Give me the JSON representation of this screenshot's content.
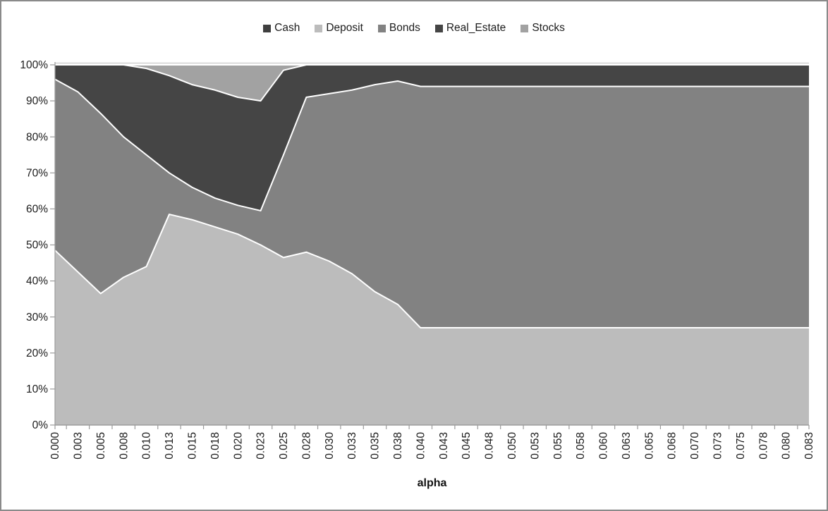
{
  "window": {
    "background": "#FFFFFF",
    "border_color": "#8A8A8A"
  },
  "chart_data": {
    "type": "area",
    "stacking": "percent",
    "title": "",
    "xlabel": "alpha",
    "ylabel": "",
    "ylim": [
      0,
      100
    ],
    "grid": "top-line-only",
    "legend_position": "top",
    "axis_color": "#9B9B9B",
    "gridline_color": "#C9C9C9",
    "boundary_stroke": "#FFFFFF",
    "text_color": "#1C1C1C",
    "y_tick_labels": [
      "0%",
      "10%",
      "20%",
      "30%",
      "40%",
      "50%",
      "60%",
      "70%",
      "80%",
      "90%",
      "100%"
    ],
    "categories": [
      "0.000",
      "0.003",
      "0.005",
      "0.008",
      "0.010",
      "0.013",
      "0.015",
      "0.018",
      "0.020",
      "0.023",
      "0.025",
      "0.028",
      "0.030",
      "0.033",
      "0.035",
      "0.038",
      "0.040",
      "0.043",
      "0.045",
      "0.048",
      "0.050",
      "0.053",
      "0.055",
      "0.058",
      "0.060",
      "0.063",
      "0.065",
      "0.068",
      "0.070",
      "0.073",
      "0.075",
      "0.078",
      "0.080",
      "0.083"
    ],
    "series": [
      {
        "name": "Cash",
        "color": "#3F3F3F",
        "values": [
          0,
          0,
          0,
          0,
          0,
          0,
          0,
          0,
          0,
          0,
          0,
          0,
          0,
          0,
          0,
          0,
          0,
          0,
          0,
          0,
          0,
          0,
          0,
          0,
          0,
          0,
          0,
          0,
          0,
          0,
          0,
          0,
          0,
          0
        ]
      },
      {
        "name": "Deposit",
        "color": "#BCBCBC",
        "values": [
          48.5,
          42.5,
          36.5,
          41,
          44,
          58.5,
          57,
          55,
          53,
          50,
          46.5,
          48,
          45.5,
          42,
          37,
          33.5,
          27,
          27,
          27,
          27,
          27,
          27,
          27,
          27,
          27,
          27,
          27,
          27,
          27,
          27,
          27,
          27,
          27,
          27
        ]
      },
      {
        "name": "Bonds",
        "color": "#828282",
        "values": [
          47.5,
          50,
          50,
          39,
          31,
          11.5,
          9,
          8,
          8,
          9.5,
          28.5,
          43,
          46.5,
          51,
          57.5,
          62,
          67,
          67,
          67,
          67,
          67,
          67,
          67,
          67,
          67,
          67,
          67,
          67,
          67,
          67,
          67,
          67,
          67,
          67
        ]
      },
      {
        "name": "Real_Estate",
        "color": "#454545",
        "values": [
          4,
          7.5,
          13.5,
          20,
          24,
          27,
          28.5,
          30,
          30,
          30.5,
          23.5,
          9,
          8,
          7,
          5.5,
          4.5,
          6,
          6,
          6,
          6,
          6,
          6,
          6,
          6,
          6,
          6,
          6,
          6,
          6,
          6,
          6,
          6,
          6,
          6
        ]
      },
      {
        "name": "Stocks",
        "color": "#A2A2A2",
        "values": [
          0,
          0,
          0,
          0,
          1,
          3,
          5.5,
          7,
          9,
          10,
          1.5,
          0,
          0,
          0,
          0,
          0,
          0,
          0,
          0,
          0,
          0,
          0,
          0,
          0,
          0,
          0,
          0,
          0,
          0,
          0,
          0,
          0,
          0,
          0
        ]
      }
    ]
  }
}
